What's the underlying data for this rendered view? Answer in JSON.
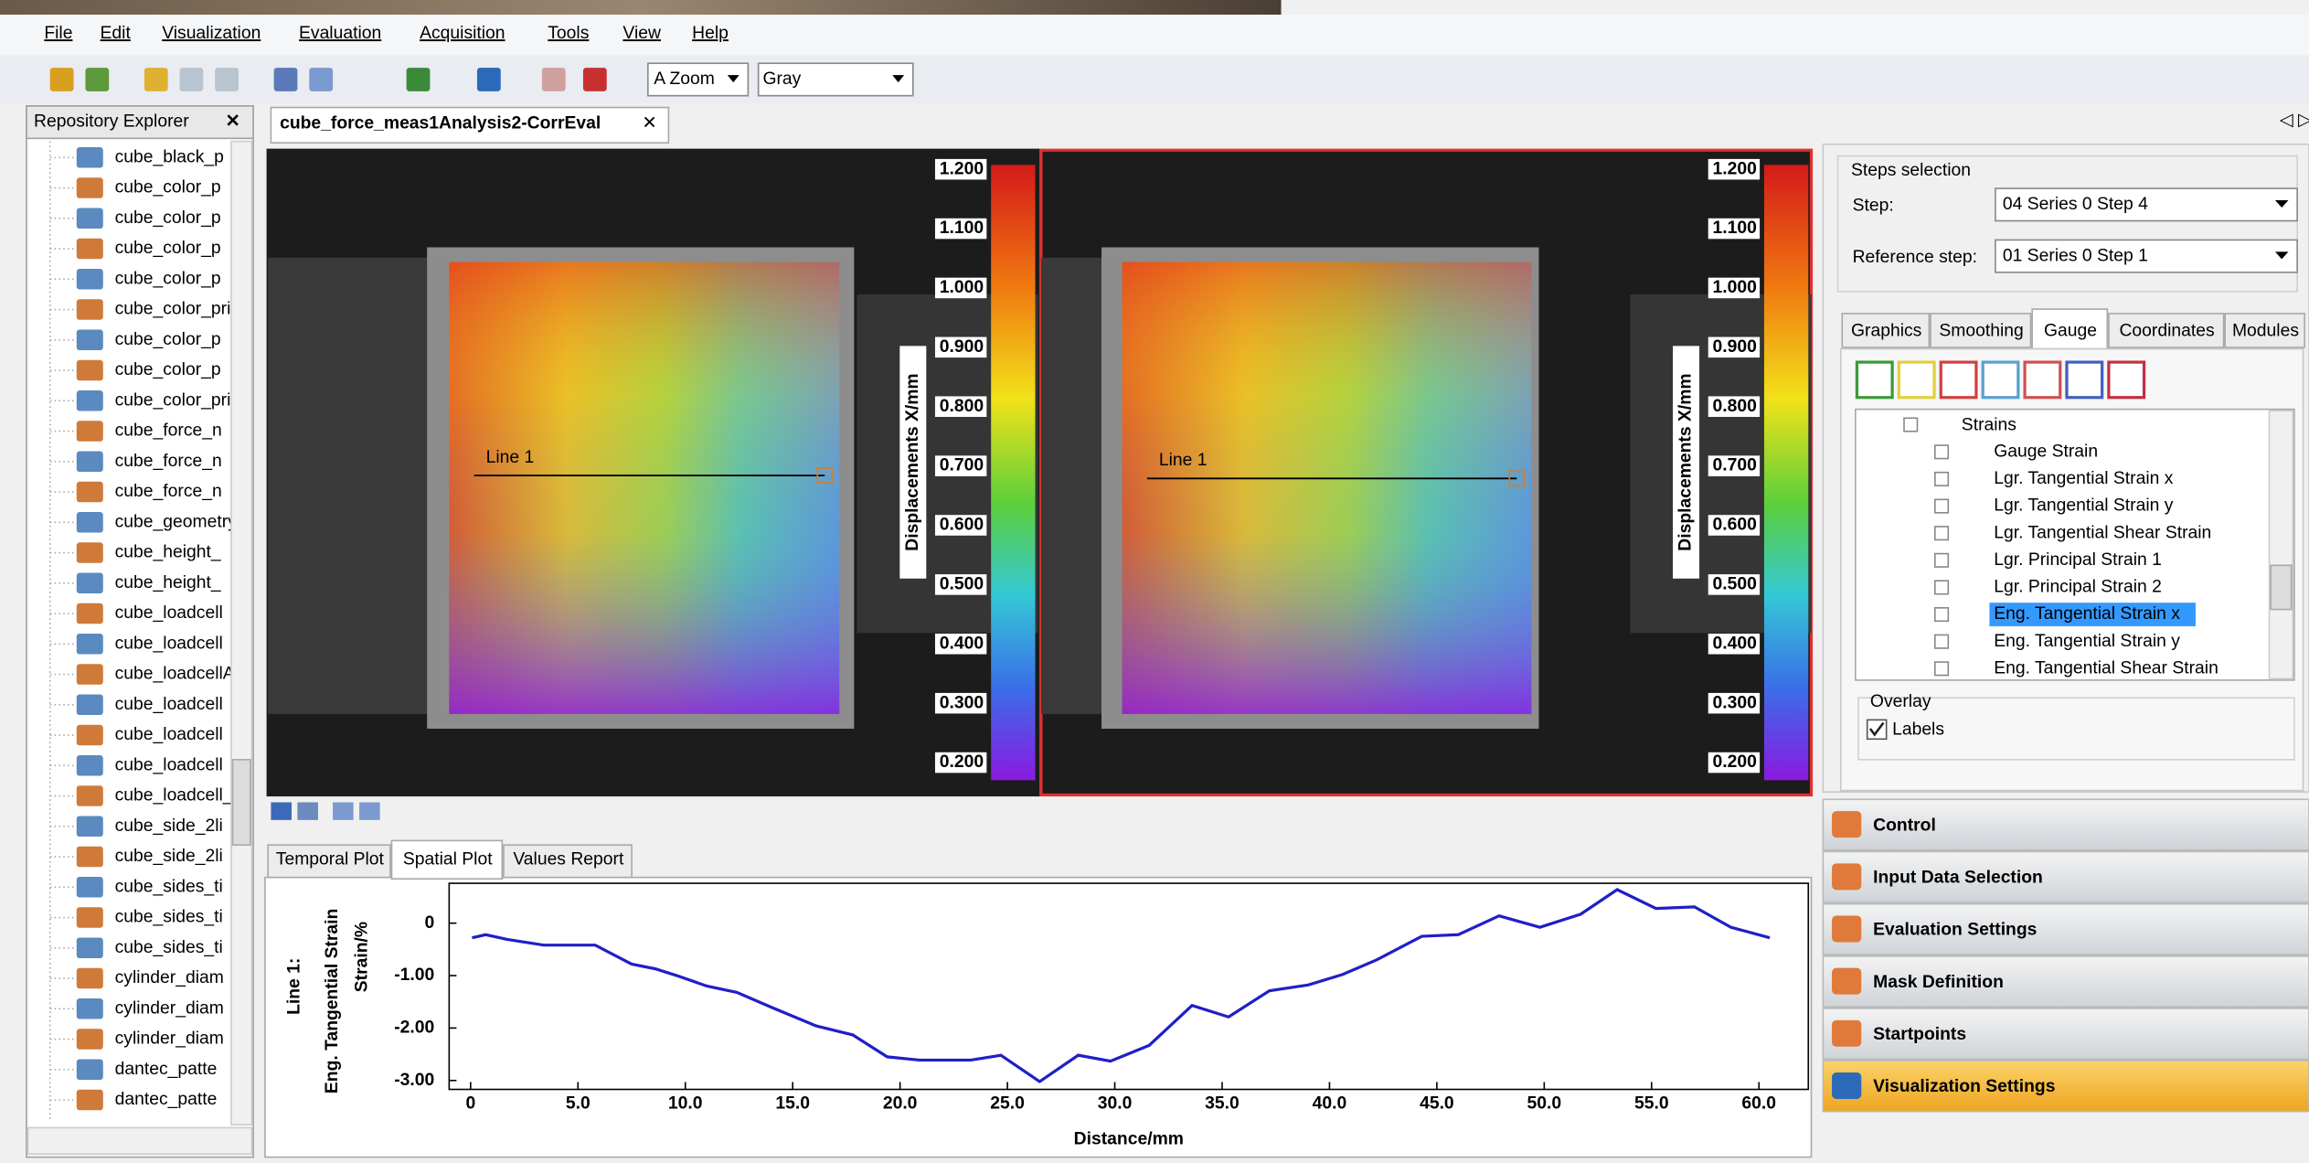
{
  "menu": [
    "File",
    "Edit",
    "Visualization",
    "Evaluation",
    "Acquisition",
    "Tools",
    "View",
    "Help"
  ],
  "toolbar": {
    "zoom": "A Zoom",
    "palette": "Gray"
  },
  "repository": {
    "title": "Repository Explorer",
    "items": [
      "cube_black_p",
      "cube_color_p",
      "cube_color_p",
      "cube_color_p",
      "cube_color_p",
      "cube_color_prir",
      "cube_color_p",
      "cube_color_p",
      "cube_color_prir",
      "cube_force_n",
      "cube_force_n",
      "cube_force_n",
      "cube_geometry",
      "cube_height_",
      "cube_height_",
      "cube_loadcell",
      "cube_loadcell",
      "cube_loadcellAr",
      "cube_loadcell",
      "cube_loadcell",
      "cube_loadcell",
      "cube_loadcell_t",
      "cube_side_2li",
      "cube_side_2li",
      "cube_sides_ti",
      "cube_sides_ti",
      "cube_sides_ti",
      "cylinder_diam",
      "cylinder_diam",
      "cylinder_diam",
      "dantec_patte",
      "dantec_patte"
    ]
  },
  "document_tab": "cube_force_meas1Analysis2-CorrEval",
  "views": {
    "colorbar_label": "Displacements X/mm",
    "line_label": "Line 1",
    "colorbar_ticks": [
      "1.200",
      "1.100",
      "1.000",
      "0.900",
      "0.800",
      "0.700",
      "0.600",
      "0.500",
      "0.400",
      "0.300",
      "0.200"
    ]
  },
  "plot_tabs": [
    "Temporal Plot",
    "Spatial Plot",
    "Values Report"
  ],
  "active_plot_tab": 1,
  "plot": {
    "series_name": "Line 1:",
    "y_label": "Eng. Tangential Strain",
    "y_unit_label": "Strain/%",
    "x_label": "Distance/mm",
    "color": "#1f1fc8",
    "x": [
      0.07,
      0.7,
      1.7,
      3.4,
      5.8,
      7.5,
      8.6,
      9.6,
      11.0,
      12.4,
      14.1,
      16.1,
      17.8,
      19.4,
      20.9,
      23.3,
      24.7,
      26.5,
      28.3,
      29.8,
      31.6,
      33.6,
      35.3,
      37.2,
      39.0,
      40.6,
      42.2,
      44.3,
      46.0,
      47.9,
      49.8,
      51.7,
      53.4,
      55.2,
      57.0,
      58.7,
      60.5
    ],
    "values": [
      -0.28,
      -0.22,
      -0.31,
      -0.42,
      -0.42,
      -0.78,
      -0.87,
      -1.0,
      -1.2,
      -1.32,
      -1.62,
      -1.96,
      -2.13,
      -2.55,
      -2.61,
      -2.61,
      -2.52,
      -3.02,
      -2.52,
      -2.63,
      -2.33,
      -1.57,
      -1.79,
      -1.29,
      -1.18,
      -0.98,
      -0.7,
      -0.25,
      -0.22,
      0.14,
      -0.08,
      0.17,
      0.64,
      0.28,
      0.31,
      -0.08,
      -0.28
    ],
    "xlim": [
      -1.0,
      62.3
    ],
    "ylim": [
      -3.17,
      0.76
    ],
    "xticks": [
      0,
      {
        "value": 5,
        "label": "5.0"
      },
      {
        "value": 10,
        "label": "10.0"
      },
      {
        "value": 15,
        "label": "15.0"
      },
      {
        "value": 20,
        "label": "20.0"
      },
      {
        "value": 25,
        "label": "25.0"
      },
      {
        "value": 30,
        "label": "30.0"
      },
      {
        "value": 35,
        "label": "35.0"
      },
      {
        "value": 40,
        "label": "40.0"
      },
      {
        "value": 45,
        "label": "45.0"
      },
      {
        "value": 50,
        "label": "50.0"
      },
      {
        "value": 55,
        "label": "55.0"
      },
      {
        "value": 60,
        "label": "60.0"
      }
    ],
    "yticks": [
      0,
      {
        "value": -1,
        "label": "-1.00"
      },
      {
        "value": -2,
        "label": "-2.00"
      },
      {
        "value": -3,
        "label": "-3.00"
      }
    ]
  },
  "steps": {
    "title": "Steps selection",
    "step_label": "Step:",
    "step": "04 Series 0  Step 4",
    "reference_label": "Reference step:",
    "reference": "01 Series 0  Step 1"
  },
  "settings_tabs": [
    "Graphics",
    "Smoothing",
    "Gauge",
    "Coordinates",
    "Modules"
  ],
  "active_settings_tab": 2,
  "tree": {
    "root": "Strains",
    "items": [
      "Gauge Strain",
      "Lgr. Tangential Strain x",
      "Lgr. Tangential Strain y",
      "Lgr. Tangential Shear Strain",
      "Lgr. Principal Strain 1",
      "Lgr. Principal Strain 2",
      "Eng. Tangential Strain x",
      "Eng. Tangential Strain y",
      "Eng. Tangential Shear Strain"
    ],
    "selected": 6
  },
  "overlay": {
    "title": "Overlay",
    "labels": "Labels"
  },
  "panels": [
    "Control",
    "Input Data Selection",
    "Evaluation Settings",
    "Mask Definition",
    "Startpoints",
    "Visualization Settings"
  ],
  "active_panel": 5
}
